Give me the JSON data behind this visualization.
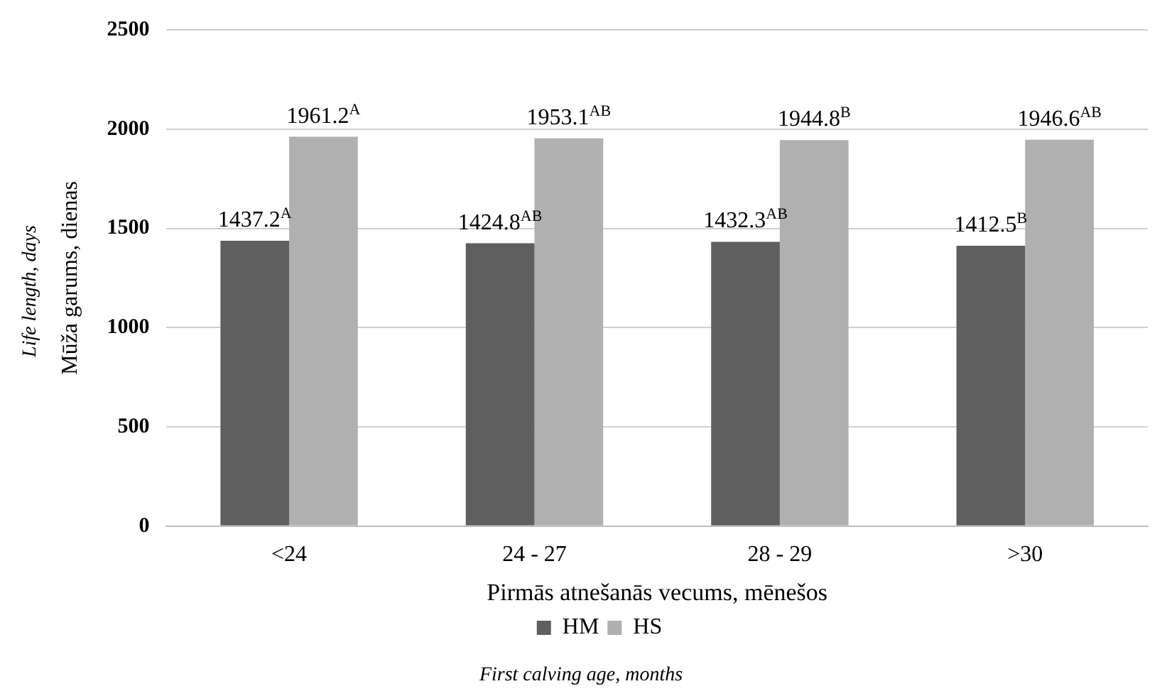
{
  "chart_data": {
    "type": "bar",
    "xlabel": "Pirmās atnešanās vecums, mēnešos",
    "ylabel": "Mūža garums, dienas",
    "annotations": [
      "Life length, days",
      "First calving age, months"
    ],
    "categories": [
      "<24",
      "24 - 27",
      "28 - 29",
      ">30"
    ],
    "series": [
      {
        "name": "HM",
        "color": "#5f5f5f",
        "values": [
          1437.2,
          1424.8,
          1432.3,
          1412.5
        ],
        "value_labels": [
          "1437.2$^{A}$",
          "1424.8$^{AB}$",
          "1432.3$^{AB}$",
          "1412.5$^{B}$"
        ]
      },
      {
        "name": "HS",
        "color": "#b0b0b0",
        "values": [
          1961.2,
          1953.1,
          1944.8,
          1946.6
        ],
        "value_labels": [
          "1961.2$^{A}$",
          "1953.1$^{AB}$",
          "1944.8$^{B}$",
          "1946.6$^{AB}$"
        ]
      }
    ],
    "ylim": [
      0,
      2500
    ],
    "yticks": [
      0,
      500,
      1000,
      1500,
      2000,
      2500
    ],
    "grid": "y",
    "legend": "bottom"
  }
}
